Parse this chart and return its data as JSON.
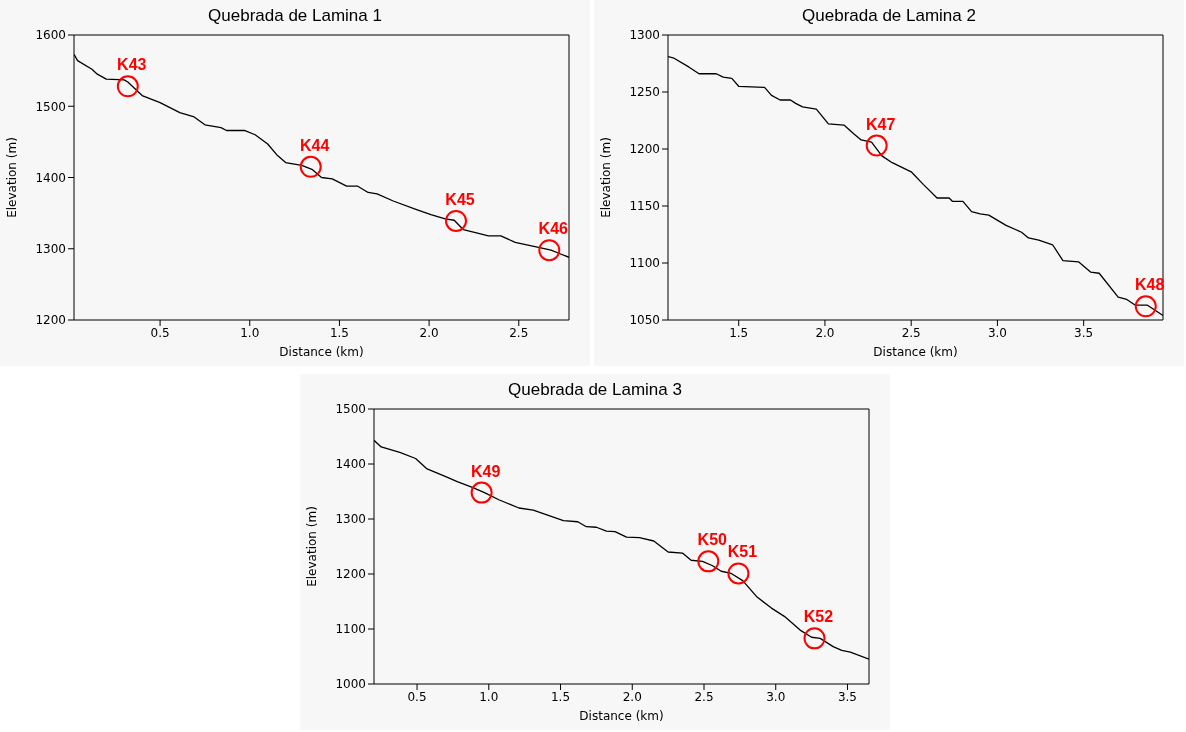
{
  "chart_data": [
    {
      "type": "line",
      "title": "Quebrada de Lamina 1",
      "xlabel": "Distance (km)",
      "ylabel": "Elevation (m)",
      "series": [
        {
          "color": "#000000",
          "x": [
            0.02,
            0.04,
            0.12,
            0.15,
            0.2,
            0.3,
            0.32,
            0.4,
            0.5,
            0.61,
            0.69,
            0.75,
            0.84,
            0.87,
            0.97,
            1.03,
            1.1,
            1.15,
            1.2,
            1.29,
            1.35,
            1.4,
            1.46,
            1.54,
            1.6,
            1.66,
            1.71,
            1.8,
            1.93,
            2.01,
            2.09,
            2.14,
            2.19,
            2.27,
            2.33,
            2.4,
            2.48,
            2.61,
            2.68,
            2.73,
            2.78
          ],
          "values": [
            1573,
            1564,
            1552,
            1545,
            1538,
            1537,
            1534,
            1515,
            1505,
            1491,
            1485,
            1474,
            1470,
            1466,
            1466,
            1460,
            1447,
            1432,
            1421,
            1417,
            1411,
            1400,
            1398,
            1388,
            1388,
            1379,
            1377,
            1367,
            1355,
            1348,
            1342,
            1340,
            1327,
            1322,
            1318,
            1318,
            1309,
            1302,
            1298,
            1293,
            1288
          ]
        }
      ],
      "xlim": [
        0.02,
        2.78
      ],
      "ylim": [
        1200,
        1600
      ],
      "xticks": [
        0.5,
        {
          "value": 1,
          "label": "1.0"
        },
        1.5,
        {
          "value": 2,
          "label": "2.0"
        },
        2.5
      ],
      "yticks": [
        1200,
        1300,
        1400,
        1500,
        1600
      ],
      "annotations": [
        {
          "text": "K43",
          "x": 0.32,
          "y": 1528
        },
        {
          "text": "K44",
          "x": 1.34,
          "y": 1415
        },
        {
          "text": "K45",
          "x": 2.15,
          "y": 1339
        },
        {
          "text": "K46",
          "x": 2.67,
          "y": 1298
        }
      ]
    },
    {
      "type": "line",
      "title": "Quebrada de Lamina 2",
      "xlabel": "Distance (km)",
      "ylabel": "Elevation (m)",
      "series": [
        {
          "color": "#000000",
          "x": [
            1.09,
            1.12,
            1.21,
            1.27,
            1.37,
            1.41,
            1.46,
            1.5,
            1.65,
            1.69,
            1.74,
            1.8,
            1.83,
            1.87,
            1.95,
            2.02,
            2.11,
            2.17,
            2.21,
            2.27,
            2.33,
            2.39,
            2.5,
            2.57,
            2.65,
            2.72,
            2.74,
            2.8,
            2.85,
            2.9,
            2.95,
            3.05,
            3.14,
            3.18,
            3.24,
            3.32,
            3.38,
            3.47,
            3.54,
            3.59,
            3.7,
            3.75,
            3.8,
            3.87,
            3.96
          ],
          "values": [
            1281,
            1280,
            1272,
            1266,
            1266,
            1263,
            1262,
            1255,
            1254,
            1247,
            1243,
            1243,
            1240,
            1237,
            1235,
            1222,
            1221,
            1213,
            1208,
            1206,
            1194,
            1188,
            1180,
            1169,
            1157,
            1157,
            1154,
            1154,
            1145,
            1143,
            1142,
            1133,
            1127,
            1122,
            1120,
            1116,
            1102,
            1101,
            1092,
            1091,
            1070,
            1068,
            1063,
            1063,
            1054
          ]
        }
      ],
      "xlim": [
        1.09,
        3.96
      ],
      "ylim": [
        1050,
        1300
      ],
      "xticks": [
        1.5,
        {
          "value": 2,
          "label": "2.0"
        },
        2.5,
        {
          "value": 3,
          "label": "3.0"
        },
        3.5
      ],
      "yticks": [
        1050,
        1100,
        1150,
        1200,
        1250,
        1300
      ],
      "annotations": [
        {
          "text": "K47",
          "x": 2.3,
          "y": 1203
        },
        {
          "text": "K48",
          "x": 3.86,
          "y": 1062
        }
      ]
    },
    {
      "type": "line",
      "title": "Quebrada de Lamina 3",
      "xlabel": "Distance (km)",
      "ylabel": "Elevation (m)",
      "series": [
        {
          "color": "#000000",
          "x": [
            0.2,
            0.25,
            0.38,
            0.49,
            0.57,
            0.7,
            0.78,
            0.89,
            0.97,
            1.07,
            1.21,
            1.31,
            1.42,
            1.52,
            1.62,
            1.68,
            1.75,
            1.82,
            1.88,
            1.96,
            2.05,
            2.15,
            2.25,
            2.35,
            2.41,
            2.49,
            2.56,
            2.62,
            2.69,
            2.77,
            2.87,
            2.97,
            3.06,
            3.17,
            3.25,
            3.31,
            3.4,
            3.46,
            3.52,
            3.65
          ],
          "values": [
            1443,
            1431,
            1421,
            1410,
            1391,
            1377,
            1368,
            1357,
            1348,
            1335,
            1320,
            1316,
            1306,
            1297,
            1295,
            1286,
            1285,
            1278,
            1277,
            1267,
            1266,
            1260,
            1240,
            1238,
            1225,
            1223,
            1215,
            1205,
            1201,
            1188,
            1158,
            1138,
            1123,
            1098,
            1085,
            1083,
            1068,
            1061,
            1058,
            1045
          ]
        }
      ],
      "xlim": [
        0.2,
        3.65
      ],
      "ylim": [
        1000,
        1500
      ],
      "xticks": [
        0.5,
        {
          "value": 1,
          "label": "1.0"
        },
        1.5,
        {
          "value": 2,
          "label": "2.0"
        },
        2.5,
        {
          "value": 3,
          "label": "3.0"
        },
        3.5
      ],
      "yticks": [
        1000,
        1100,
        1200,
        1300,
        1400,
        1500
      ],
      "annotations": [
        {
          "text": "K49",
          "x": 0.95,
          "y": 1348
        },
        {
          "text": "K50",
          "x": 2.53,
          "y": 1223
        },
        {
          "text": "K51",
          "x": 2.74,
          "y": 1201
        },
        {
          "text": "K52",
          "x": 3.27,
          "y": 1083
        }
      ]
    }
  ]
}
